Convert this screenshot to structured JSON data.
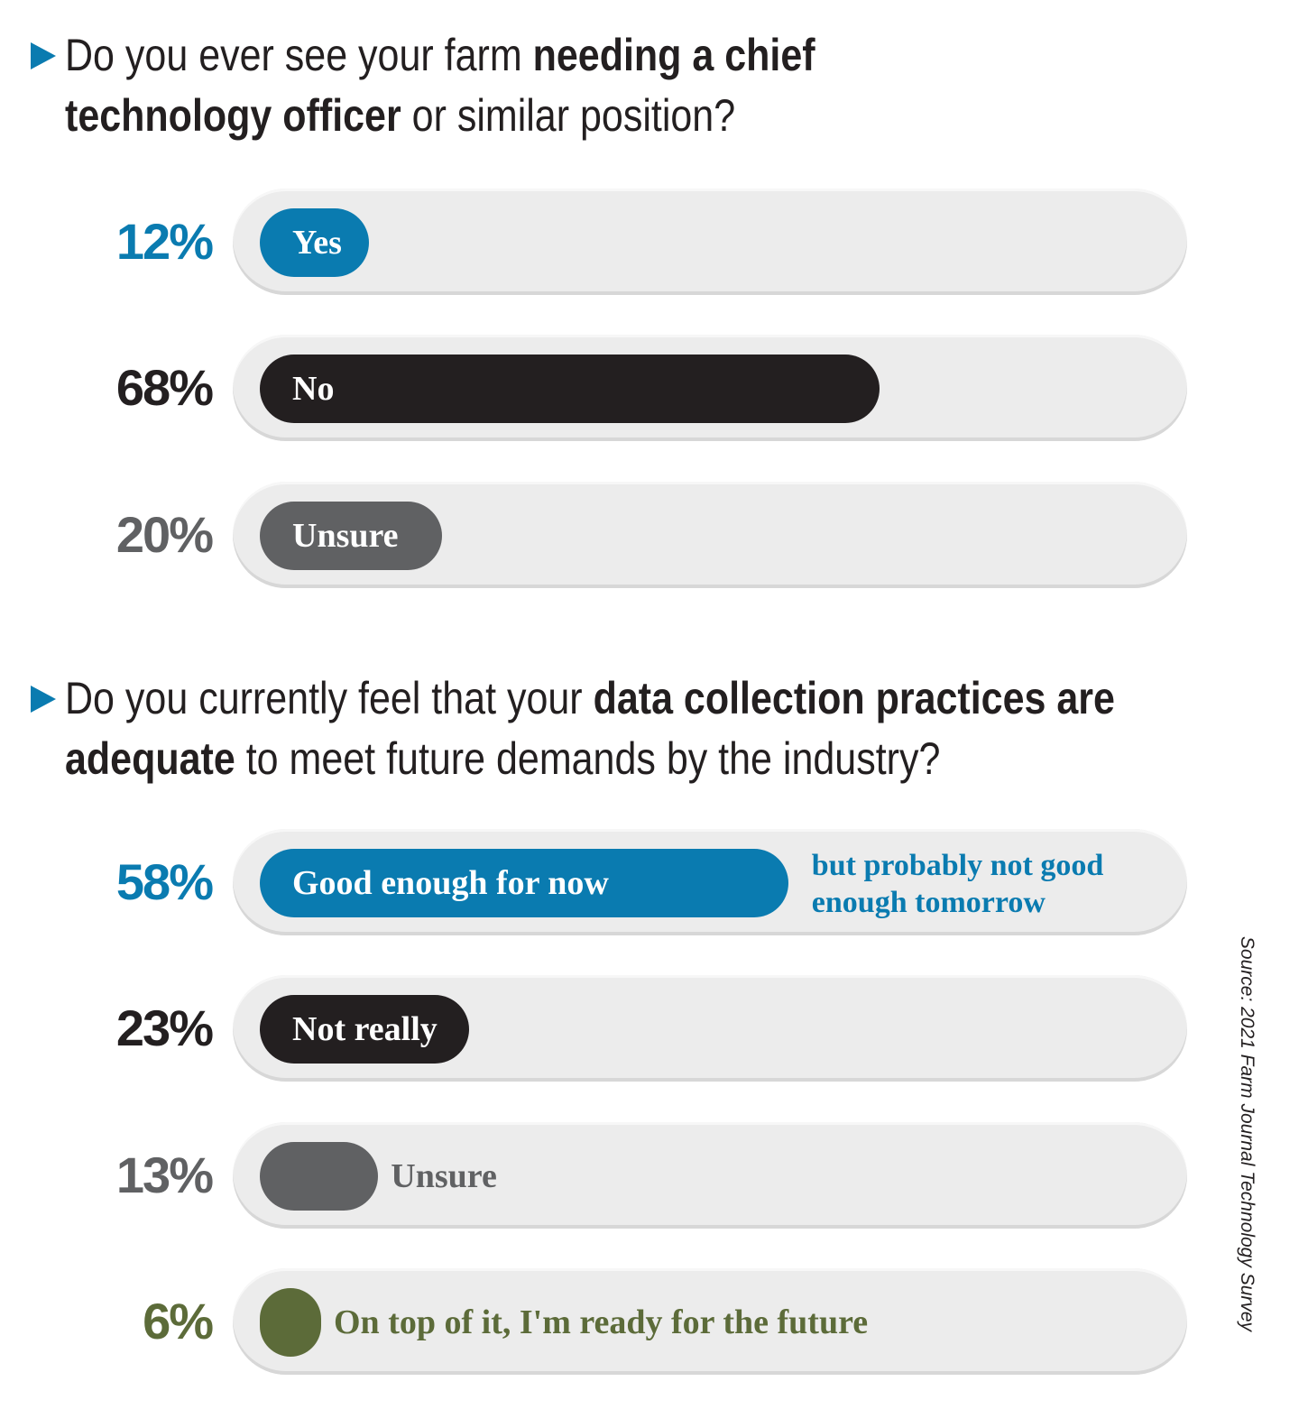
{
  "colors": {
    "blue": "#0a7bb0",
    "black": "#231f20",
    "gray": "#606163",
    "olive": "#5c6b39",
    "track": "#ececec"
  },
  "q1": {
    "text_before": "Do you ever see your farm ",
    "bold1": "needing a chief",
    "bold2": "technology officer",
    "text_after": " or similar position?"
  },
  "q2": {
    "text_before": "Do you currently feel that your ",
    "bold1": "data collection practices are",
    "bold2": "adequate",
    "text_after": " to meet future demands by the industry?"
  },
  "source": "Source: 2021 Farm Journal Technology Survey",
  "chart_data": [
    {
      "type": "bar",
      "orientation": "horizontal",
      "categories": [
        "Yes",
        "No",
        "Unsure"
      ],
      "values": [
        12,
        68,
        20
      ],
      "value_labels": [
        "12%",
        "68%",
        "20%"
      ],
      "unit": "%",
      "colors": [
        "#0a7bb0",
        "#231f20",
        "#606163"
      ],
      "xlim": [
        0,
        100
      ]
    },
    {
      "type": "bar",
      "orientation": "horizontal",
      "categories": [
        "Good enough for now",
        "Not really",
        "Unsure",
        "On top of it, I'm ready for the future"
      ],
      "values": [
        58,
        23,
        13,
        6
      ],
      "value_labels": [
        "58%",
        "23%",
        "13%",
        "6%"
      ],
      "unit": "%",
      "colors": [
        "#0a7bb0",
        "#231f20",
        "#606163",
        "#5c6b39"
      ],
      "annotations": [
        "but probably not good enough tomorrow"
      ],
      "xlim": [
        0,
        100
      ]
    }
  ]
}
